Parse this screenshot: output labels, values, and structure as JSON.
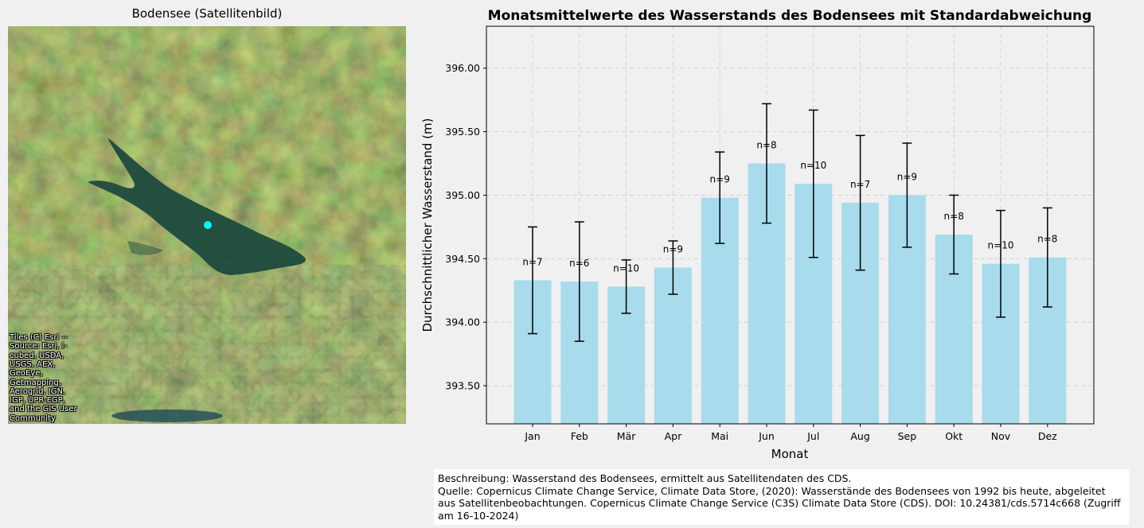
{
  "map": {
    "title": "Bodensee (Satellitenbild)",
    "attribution": "Tiles (C) Esri -- Source: Esri, i-cubed, USDA, USGS, AEX, GeoEye, Getmapping, Aerogrid, IGN, IGP, UPR-EGP, and the GIS User Community",
    "marker_color": "#00ffff"
  },
  "chart_data": {
    "type": "bar",
    "title": "Monatsmittelwerte des Wasserstands des Bodensees mit Standardabweichung",
    "xlabel": "Monat",
    "ylabel": "Durchschnittlicher Wasserstand (m)",
    "categories": [
      "Jan",
      "Feb",
      "Mär",
      "Apr",
      "Mai",
      "Jun",
      "Jul",
      "Aug",
      "Sep",
      "Okt",
      "Nov",
      "Dez"
    ],
    "values": [
      394.33,
      394.32,
      394.28,
      394.43,
      394.98,
      395.25,
      395.09,
      394.94,
      395.0,
      394.69,
      394.46,
      394.51
    ],
    "std": [
      0.42,
      0.47,
      0.21,
      0.21,
      0.36,
      0.47,
      0.58,
      0.53,
      0.41,
      0.31,
      0.42,
      0.39
    ],
    "n_labels": [
      "n=7",
      "n=6",
      "n=10",
      "n=9",
      "n=9",
      "n=8",
      "n=10",
      "n=7",
      "n=9",
      "n=8",
      "n=10",
      "n=8"
    ],
    "ylim": [
      393.2,
      396.33
    ],
    "yticks": [
      393.5,
      394.0,
      394.5,
      395.0,
      395.5,
      396.0
    ],
    "ytick_labels": [
      "393.50",
      "394.00",
      "394.50",
      "395.00",
      "395.50",
      "396.00"
    ],
    "grid": true,
    "bar_color": "#a8dbec",
    "errorbar_color": "#000000"
  },
  "description": {
    "line1": "Beschreibung: Wasserstand des Bodensees, ermittelt aus Satellitendaten des CDS.",
    "line2": "Quelle: Copernicus Climate Change Service, Climate Data Store, (2020): Wasserstände des Bodensees von 1992 bis heute, abgeleitet aus Satellitenbeobachtungen. Copernicus Climate Change Service (C3S) Climate Data Store (CDS). DOI: 10.24381/cds.5714c668 (Zugriff am 16-10-2024)"
  }
}
